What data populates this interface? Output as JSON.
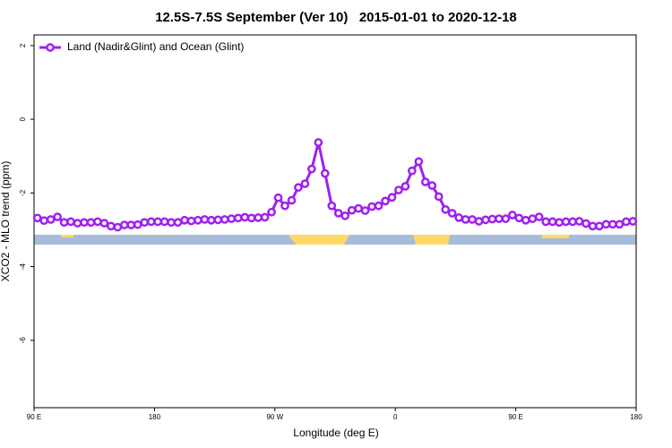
{
  "chart_data": {
    "type": "line",
    "title": "12.5S-7.5S September (Ver 10)   2015-01-01 to 2020-12-18",
    "xlabel": "Longitude (deg E)",
    "ylabel": "XCO2 - MLO trend (ppm)",
    "xlim": [
      -270,
      180
    ],
    "ylim": [
      -7.83,
      2.29
    ],
    "xticks": [
      {
        "value": -270,
        "label": "90 E"
      },
      {
        "value": -180,
        "label": "180"
      },
      {
        "value": -90,
        "label": "90 W"
      },
      0,
      {
        "value": 90,
        "label": "90 E"
      },
      {
        "value": 180,
        "label": "180"
      }
    ],
    "yticks": [
      -6,
      -4,
      -2,
      0,
      2
    ],
    "legend": "top-left",
    "x": [
      -267.5,
      -262.5,
      -257.5,
      -252.5,
      -247.5,
      -242.5,
      -237.5,
      -232.5,
      -227.5,
      -222.5,
      -217.5,
      -212.5,
      -207.5,
      -202.5,
      -197.5,
      -192.5,
      -187.5,
      -182.5,
      -177.5,
      -172.5,
      -167.5,
      -162.5,
      -157.5,
      -152.5,
      -147.5,
      -142.5,
      -137.5,
      -132.5,
      -127.5,
      -122.5,
      -117.5,
      -112.5,
      -107.5,
      -102.5,
      -97.5,
      -92.5,
      -87.5,
      -82.5,
      -77.5,
      -72.5,
      -67.5,
      -62.5,
      -57.5,
      -52.5,
      -47.5,
      -42.5,
      -37.5,
      -32.5,
      -27.5,
      -22.5,
      -17.5,
      -12.5,
      -7.5,
      -2.5,
      2.5,
      7.5,
      12.5,
      17.5,
      22.5,
      27.5,
      32.5,
      37.5,
      42.5,
      47.5,
      52.5,
      57.5,
      62.5,
      67.5,
      72.5,
      77.5,
      82.5,
      87.5,
      92.5,
      97.5,
      102.5,
      107.5,
      112.5,
      117.5,
      122.5,
      127.5,
      132.5,
      137.5,
      142.5,
      147.5,
      152.5,
      157.5,
      162.5,
      167.5,
      172.5,
      177.5
    ],
    "series": [
      {
        "name": "Land (Nadir&Glint) and Ocean (Glint)",
        "color": "#a020f0",
        "values": [
          -2.68,
          -2.75,
          -2.72,
          -2.65,
          -2.8,
          -2.78,
          -2.82,
          -2.8,
          -2.8,
          -2.78,
          -2.82,
          -2.9,
          -2.93,
          -2.87,
          -2.87,
          -2.86,
          -2.8,
          -2.78,
          -2.78,
          -2.78,
          -2.8,
          -2.8,
          -2.74,
          -2.76,
          -2.74,
          -2.72,
          -2.74,
          -2.73,
          -2.72,
          -2.7,
          -2.68,
          -2.66,
          -2.68,
          -2.67,
          -2.66,
          -2.52,
          -2.13,
          -2.35,
          -2.2,
          -1.85,
          -1.75,
          -1.35,
          -0.63,
          -1.47,
          -2.35,
          -2.55,
          -2.62,
          -2.47,
          -2.42,
          -2.48,
          -2.37,
          -2.35,
          -2.22,
          -2.12,
          -1.92,
          -1.82,
          -1.4,
          -1.15,
          -1.7,
          -1.8,
          -2.1,
          -2.45,
          -2.55,
          -2.67,
          -2.72,
          -2.72,
          -2.77,
          -2.73,
          -2.71,
          -2.7,
          -2.7,
          -2.6,
          -2.68,
          -2.74,
          -2.7,
          -2.65,
          -2.78,
          -2.78,
          -2.8,
          -2.78,
          -2.78,
          -2.77,
          -2.83,
          -2.9,
          -2.9,
          -2.85,
          -2.85,
          -2.85,
          -2.78,
          -2.77
        ]
      }
    ]
  }
}
